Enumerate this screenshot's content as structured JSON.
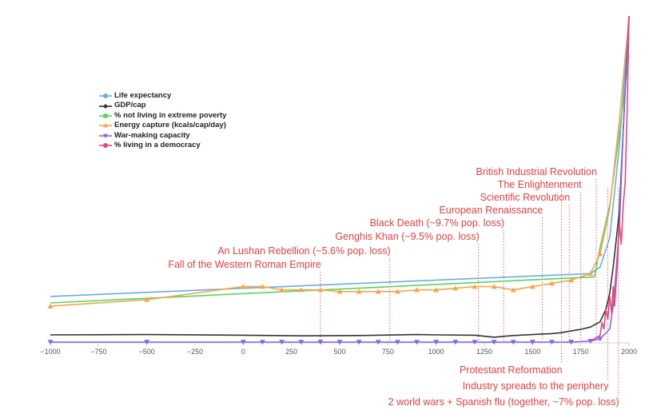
{
  "chart_data": {
    "type": "line",
    "title": "",
    "xlabel": "",
    "ylabel": "",
    "xlim": [
      -1000,
      2000
    ],
    "ylim": [
      0,
      100
    ],
    "x_ticks": [
      -1000,
      -750,
      -500,
      -250,
      0,
      250,
      500,
      750,
      1000,
      1250,
      1500,
      1750,
      2000
    ],
    "x_tick_labels": [
      "−1000",
      "−750",
      "−500",
      "−250",
      "0",
      "250",
      "500",
      "750",
      "1000",
      "1250",
      "1500",
      "1750",
      "2000"
    ],
    "legend_position": "top-left",
    "series": [
      {
        "name": "Life expectancy",
        "color": "#6aaee0",
        "marker": "circle",
        "show_markers": false,
        "points": [
          [
            -1000,
            14
          ],
          [
            1800,
            21
          ],
          [
            1850,
            23
          ],
          [
            1900,
            32
          ],
          [
            1950,
            60
          ],
          [
            2000,
            100
          ]
        ]
      },
      {
        "name": "GDP/cap",
        "color": "#333333",
        "marker": "diamond",
        "show_markers": false,
        "points": [
          [
            -1000,
            2.2
          ],
          [
            -500,
            2.3
          ],
          [
            0,
            2.1
          ],
          [
            300,
            1.9
          ],
          [
            600,
            2.0
          ],
          [
            900,
            2.3
          ],
          [
            1000,
            2.2
          ],
          [
            1200,
            2.1
          ],
          [
            1300,
            1.5
          ],
          [
            1400,
            2.0
          ],
          [
            1500,
            2.3
          ],
          [
            1600,
            2.6
          ],
          [
            1650,
            2.9
          ],
          [
            1700,
            3.4
          ],
          [
            1750,
            3.9
          ],
          [
            1800,
            4.6
          ],
          [
            1850,
            6.2
          ],
          [
            1880,
            10
          ],
          [
            1900,
            15
          ],
          [
            1920,
            24
          ],
          [
            1950,
            40
          ],
          [
            1970,
            65
          ],
          [
            1990,
            90
          ],
          [
            2000,
            100
          ]
        ]
      },
      {
        "name": "% not living in extreme poverty",
        "color": "#5dd35d",
        "marker": "square",
        "show_markers": false,
        "points": [
          [
            -1000,
            12
          ],
          [
            1820,
            20
          ],
          [
            1850,
            29
          ],
          [
            1900,
            42
          ],
          [
            1950,
            64
          ],
          [
            2000,
            88
          ]
        ]
      },
      {
        "name": "Energy capture (kcals/cap/day)",
        "color": "#f5a54a",
        "marker": "triangle-up",
        "show_markers": true,
        "points": [
          [
            -1000,
            11
          ],
          [
            -500,
            13
          ],
          [
            0,
            17
          ],
          [
            100,
            17
          ],
          [
            200,
            16
          ],
          [
            300,
            16
          ],
          [
            400,
            16
          ],
          [
            500,
            15.5
          ],
          [
            600,
            15.5
          ],
          [
            700,
            15.5
          ],
          [
            800,
            15.5
          ],
          [
            900,
            16
          ],
          [
            1000,
            16
          ],
          [
            1100,
            16.5
          ],
          [
            1200,
            17
          ],
          [
            1300,
            17
          ],
          [
            1400,
            16
          ],
          [
            1500,
            17
          ],
          [
            1600,
            18
          ],
          [
            1700,
            19
          ],
          [
            1800,
            21
          ],
          [
            1850,
            27
          ],
          [
            1900,
            41
          ],
          [
            1950,
            68
          ],
          [
            2000,
            100
          ]
        ]
      },
      {
        "name": "War-making capacity",
        "color": "#8a63e8",
        "marker": "triangle-down",
        "show_markers": true,
        "points": [
          [
            -1000,
            0
          ],
          [
            -500,
            0
          ],
          [
            0,
            0
          ],
          [
            100,
            0
          ],
          [
            200,
            0
          ],
          [
            300,
            0
          ],
          [
            400,
            0
          ],
          [
            500,
            0
          ],
          [
            600,
            0
          ],
          [
            700,
            0
          ],
          [
            800,
            0
          ],
          [
            900,
            0
          ],
          [
            1000,
            0
          ],
          [
            1100,
            0
          ],
          [
            1200,
            0
          ],
          [
            1300,
            0
          ],
          [
            1400,
            0
          ],
          [
            1500,
            0
          ],
          [
            1600,
            0
          ],
          [
            1700,
            0
          ],
          [
            1800,
            0.3
          ],
          [
            1850,
            1
          ],
          [
            1900,
            4
          ],
          [
            1920,
            12
          ],
          [
            1950,
            35
          ],
          [
            1970,
            65
          ],
          [
            2000,
            100
          ]
        ]
      },
      {
        "name": "% living in a democracy",
        "color": "#e8457a",
        "marker": "circle",
        "show_markers": false,
        "points": [
          [
            1800,
            0.3
          ],
          [
            1850,
            2
          ],
          [
            1860,
            6
          ],
          [
            1870,
            4
          ],
          [
            1880,
            10
          ],
          [
            1890,
            7
          ],
          [
            1900,
            14
          ],
          [
            1910,
            9
          ],
          [
            1918,
            17
          ],
          [
            1925,
            11
          ],
          [
            1940,
            24
          ],
          [
            1950,
            37
          ],
          [
            1960,
            30
          ],
          [
            1970,
            42
          ],
          [
            1980,
            49
          ],
          [
            1990,
            70
          ],
          [
            2000,
            100
          ]
        ]
      }
    ],
    "annotations": [
      {
        "label": "Fall of the Western Roman Empire",
        "x": 400,
        "position": "above"
      },
      {
        "label": "An Lushan Rebellion (~5.6% pop. loss)",
        "x": 760,
        "position": "above"
      },
      {
        "label": "Genghis Khan (~9.5% pop. loss)",
        "x": 1220,
        "position": "above"
      },
      {
        "label": "Black Death (~9.7% pop. loss)",
        "x": 1350,
        "position": "above"
      },
      {
        "label": "European Renaissance",
        "x": 1550,
        "position": "above"
      },
      {
        "label": "Scientific Revolution",
        "x": 1690,
        "position": "above"
      },
      {
        "label": "The Enlightenment",
        "x": 1750,
        "position": "above"
      },
      {
        "label": "British Industrial Revolution",
        "x": 1830,
        "position": "above"
      },
      {
        "label": "Protestant Reformation",
        "x": 1650,
        "position": "below"
      },
      {
        "label": "Industry spreads to the periphery",
        "x": 1890,
        "position": "below"
      },
      {
        "label": "2 world wars + Spanish flu (together, ~7%  pop. loss)",
        "x": 1945,
        "position": "below"
      }
    ]
  }
}
